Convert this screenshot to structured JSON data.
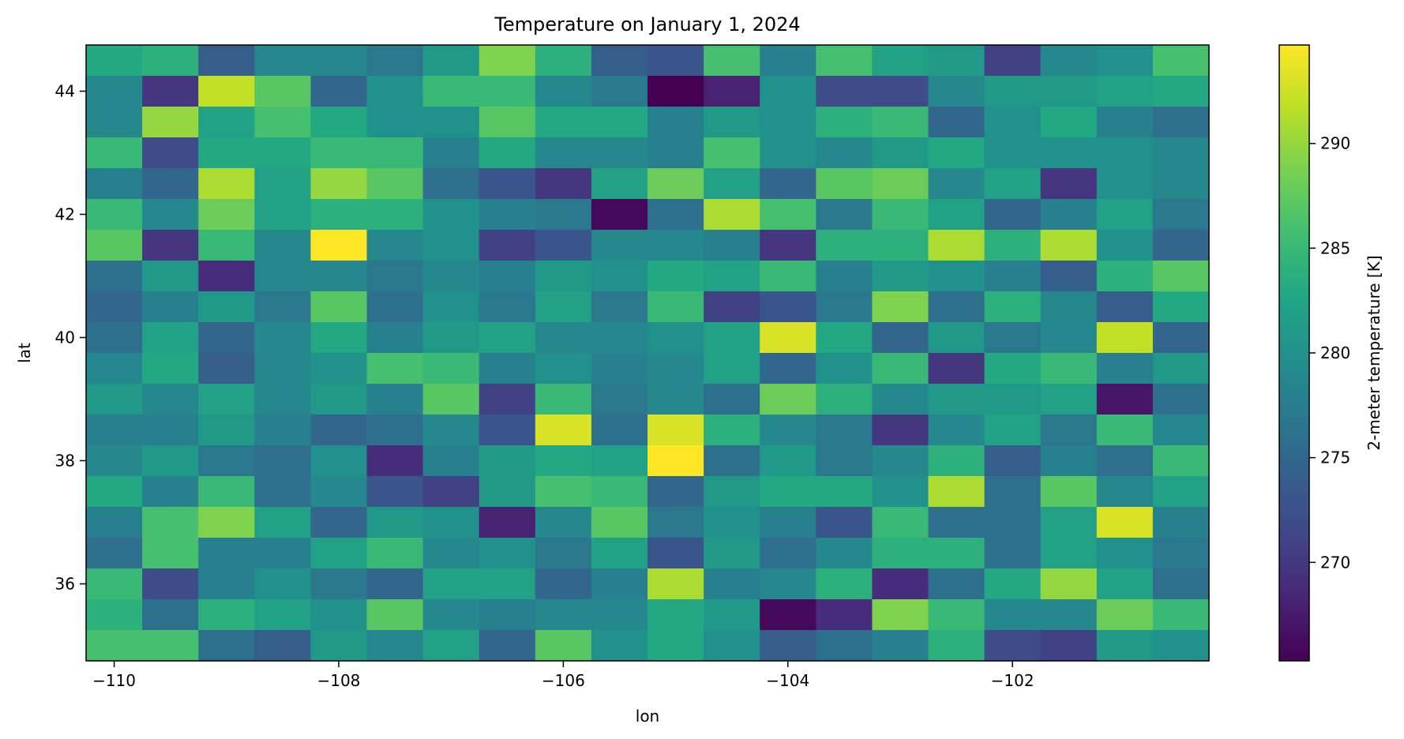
{
  "chart_data": {
    "type": "heatmap",
    "title": "Temperature on January 1, 2024",
    "xlabel": "lon",
    "ylabel": "lat",
    "colorbar_label": "2-meter temperature [K]",
    "colormap": "viridis",
    "x_range": [
      -110.25,
      -100.25
    ],
    "y_range": [
      34.75,
      44.75
    ],
    "x_ticks": [
      -110,
      -108,
      -106,
      -104,
      -102
    ],
    "x_tick_labels": [
      "−110",
      "−108",
      "−106",
      "−104",
      "−102"
    ],
    "y_ticks": [
      36,
      38,
      40,
      42,
      44
    ],
    "y_tick_labels": [
      "36",
      "38",
      "40",
      "42",
      "44"
    ],
    "colorbar_range": [
      265.3,
      294.7
    ],
    "colorbar_ticks": [
      270,
      275,
      280,
      285,
      290
    ],
    "colorbar_tick_labels": [
      "270",
      "275",
      "280",
      "285",
      "290"
    ],
    "x_centers": [
      -110,
      -109.5,
      -109,
      -108.5,
      -108,
      -107.5,
      -107,
      -106.5,
      -106,
      -105.5,
      -105,
      -104.5,
      -104,
      -103.5,
      -103,
      -102.5,
      -102,
      -101.5,
      -101,
      -100.5
    ],
    "y_centers": [
      44.5,
      44,
      43.5,
      43,
      42.5,
      42,
      41.5,
      41,
      40.5,
      40,
      39.5,
      39,
      38.5,
      38,
      37.5,
      37,
      36.5,
      36,
      35.5,
      35
    ],
    "values": [
      [
        283,
        284,
        274,
        279,
        279,
        277,
        281,
        289,
        284,
        274,
        273,
        286,
        278,
        286,
        282,
        281,
        271,
        279,
        280,
        286
      ],
      [
        279,
        270,
        292,
        287,
        275,
        280,
        285,
        285,
        279,
        277,
        265,
        268,
        280,
        272,
        272,
        279,
        281,
        281,
        282,
        283
      ],
      [
        279,
        290,
        282,
        286,
        283,
        280,
        280,
        287,
        283,
        283,
        278,
        281,
        280,
        284,
        285,
        275,
        280,
        283,
        278,
        276
      ],
      [
        285,
        272,
        283,
        283,
        285,
        285,
        278,
        283,
        279,
        279,
        278,
        286,
        280,
        279,
        281,
        283,
        280,
        280,
        280,
        279
      ],
      [
        278,
        275,
        291,
        282,
        290,
        287,
        276,
        273,
        270,
        282,
        288,
        282,
        275,
        287,
        288,
        279,
        282,
        270,
        280,
        279
      ],
      [
        285,
        279,
        288,
        282,
        284,
        284,
        280,
        278,
        277,
        266,
        276,
        291,
        286,
        277,
        285,
        282,
        275,
        278,
        282,
        277
      ],
      [
        287,
        270,
        285,
        279,
        294.7,
        279,
        280,
        271,
        273,
        279,
        279,
        278,
        270,
        284,
        284,
        291,
        284,
        291,
        280,
        275
      ],
      [
        276,
        281,
        269,
        279,
        279,
        277,
        279,
        278,
        281,
        280,
        283,
        282,
        285,
        278,
        281,
        280,
        278,
        274,
        284,
        287
      ],
      [
        275,
        278,
        281,
        277,
        287,
        276,
        280,
        277,
        282,
        277,
        285,
        271,
        273,
        277,
        289,
        276,
        284,
        279,
        274,
        283
      ],
      [
        276,
        282,
        275,
        279,
        283,
        278,
        281,
        282,
        279,
        279,
        280,
        282,
        293,
        283,
        275,
        281,
        277,
        279,
        292,
        275
      ],
      [
        279,
        283,
        274,
        279,
        280,
        286,
        285,
        278,
        280,
        278,
        279,
        282,
        275,
        280,
        285,
        270,
        283,
        285,
        278,
        281
      ],
      [
        281,
        279,
        282,
        279,
        281,
        278,
        287,
        271,
        285,
        277,
        279,
        276,
        288,
        284,
        279,
        281,
        281,
        282,
        267,
        276
      ],
      [
        278,
        278,
        281,
        278,
        275,
        276,
        279,
        273,
        293,
        276,
        293,
        284,
        279,
        277,
        270,
        279,
        282,
        277,
        285,
        279
      ],
      [
        279,
        281,
        277,
        276,
        280,
        269,
        278,
        281,
        283,
        282,
        294.7,
        276,
        281,
        277,
        279,
        284,
        274,
        278,
        276,
        285
      ],
      [
        283,
        278,
        285,
        276,
        279,
        273,
        271,
        281,
        286,
        285,
        275,
        281,
        283,
        283,
        280,
        291,
        276,
        287,
        279,
        282
      ],
      [
        278,
        286,
        289,
        282,
        275,
        281,
        280,
        268,
        279,
        287,
        277,
        280,
        278,
        273,
        285,
        276,
        276,
        282,
        293,
        278
      ],
      [
        276,
        286,
        278,
        278,
        282,
        285,
        279,
        280,
        277,
        282,
        273,
        281,
        276,
        279,
        284,
        284,
        276,
        282,
        280,
        277
      ],
      [
        285,
        272,
        278,
        280,
        277,
        275,
        282,
        282,
        275,
        278,
        291,
        278,
        279,
        284,
        269,
        276,
        283,
        290,
        282,
        276
      ],
      [
        284,
        276,
        284,
        282,
        280,
        287,
        279,
        278,
        279,
        279,
        283,
        281,
        266,
        269,
        289,
        285,
        279,
        279,
        288,
        285
      ],
      [
        286,
        286,
        276,
        274,
        281,
        279,
        282,
        275,
        287,
        280,
        283,
        280,
        274,
        276,
        278,
        284,
        272,
        271,
        281,
        280
      ]
    ]
  }
}
